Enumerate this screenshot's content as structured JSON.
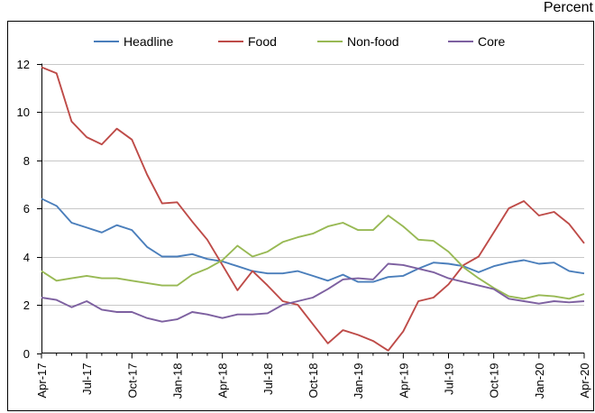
{
  "chart_data": {
    "type": "line",
    "unit_label": "Percent",
    "title": "",
    "xlabel": "",
    "ylabel": "",
    "ylim": [
      0,
      12
    ],
    "yticks": [
      0,
      2,
      4,
      6,
      8,
      10,
      12
    ],
    "x": [
      "Apr-17",
      "May-17",
      "Jun-17",
      "Jul-17",
      "Aug-17",
      "Sep-17",
      "Oct-17",
      "Nov-17",
      "Dec-17",
      "Jan-18",
      "Feb-18",
      "Mar-18",
      "Apr-18",
      "May-18",
      "Jun-18",
      "Jul-18",
      "Aug-18",
      "Sep-18",
      "Oct-18",
      "Nov-18",
      "Dec-18",
      "Jan-19",
      "Feb-19",
      "Mar-19",
      "Apr-19",
      "May-19",
      "Jun-19",
      "Jul-19",
      "Aug-19",
      "Sep-19",
      "Oct-19",
      "Nov-19",
      "Dec-19",
      "Jan-20",
      "Feb-20",
      "Mar-20",
      "Apr-20"
    ],
    "x_tick_labels": [
      {
        "index": 0,
        "label": "Apr-17"
      },
      {
        "index": 3,
        "label": "Jul-17"
      },
      {
        "index": 6,
        "label": "Oct-17"
      },
      {
        "index": 9,
        "label": "Jan-18"
      },
      {
        "index": 12,
        "label": "Apr-18"
      },
      {
        "index": 15,
        "label": "Jul-18"
      },
      {
        "index": 18,
        "label": "Oct-18"
      },
      {
        "index": 21,
        "label": "Jan-19"
      },
      {
        "index": 24,
        "label": "Apr-19"
      },
      {
        "index": 27,
        "label": "Jul-19"
      },
      {
        "index": 30,
        "label": "Oct-19"
      },
      {
        "index": 33,
        "label": "Jan-20"
      },
      {
        "index": 36,
        "label": "Apr-20"
      }
    ],
    "grid": "horizontal",
    "legend_position": "top",
    "series": [
      {
        "name": "Headline",
        "color": "#4a7ebb",
        "values": [
          6.4,
          6.1,
          5.4,
          5.2,
          5.0,
          5.3,
          5.1,
          4.4,
          4.0,
          4.0,
          4.1,
          3.9,
          3.8,
          3.6,
          3.4,
          3.3,
          3.3,
          3.4,
          3.2,
          3.0,
          3.25,
          2.95,
          2.95,
          3.15,
          3.2,
          3.5,
          3.75,
          3.7,
          3.6,
          3.35,
          3.6,
          3.75,
          3.85,
          3.7,
          3.75,
          3.4,
          3.3
        ]
      },
      {
        "name": "Food",
        "color": "#be4b48",
        "values": [
          11.85,
          11.6,
          9.6,
          8.95,
          8.65,
          9.3,
          8.85,
          7.4,
          6.2,
          6.25,
          5.45,
          4.7,
          3.65,
          2.6,
          3.4,
          2.8,
          2.15,
          2.0,
          1.2,
          0.4,
          0.95,
          0.75,
          0.5,
          0.1,
          0.9,
          2.15,
          2.3,
          2.85,
          3.65,
          4.0,
          5.0,
          6.0,
          6.3,
          5.7,
          5.85,
          5.35,
          4.55
        ]
      },
      {
        "name": "Non-food",
        "color": "#98b954",
        "values": [
          3.4,
          3.0,
          3.1,
          3.2,
          3.1,
          3.1,
          3.0,
          2.9,
          2.8,
          2.8,
          3.25,
          3.5,
          3.85,
          4.45,
          4.0,
          4.2,
          4.6,
          4.8,
          4.95,
          5.25,
          5.4,
          5.1,
          5.1,
          5.7,
          5.25,
          4.7,
          4.65,
          4.2,
          3.55,
          3.1,
          2.7,
          2.35,
          2.25,
          2.4,
          2.35,
          2.25,
          2.45
        ]
      },
      {
        "name": "Core",
        "color": "#7d60a0",
        "values": [
          2.3,
          2.2,
          1.9,
          2.15,
          1.8,
          1.7,
          1.7,
          1.45,
          1.3,
          1.4,
          1.7,
          1.6,
          1.45,
          1.6,
          1.6,
          1.65,
          2.0,
          2.15,
          2.3,
          2.65,
          3.05,
          3.1,
          3.05,
          3.7,
          3.65,
          3.5,
          3.35,
          3.1,
          2.95,
          2.8,
          2.65,
          2.25,
          2.15,
          2.05,
          2.15,
          2.1,
          2.15
        ]
      }
    ]
  }
}
